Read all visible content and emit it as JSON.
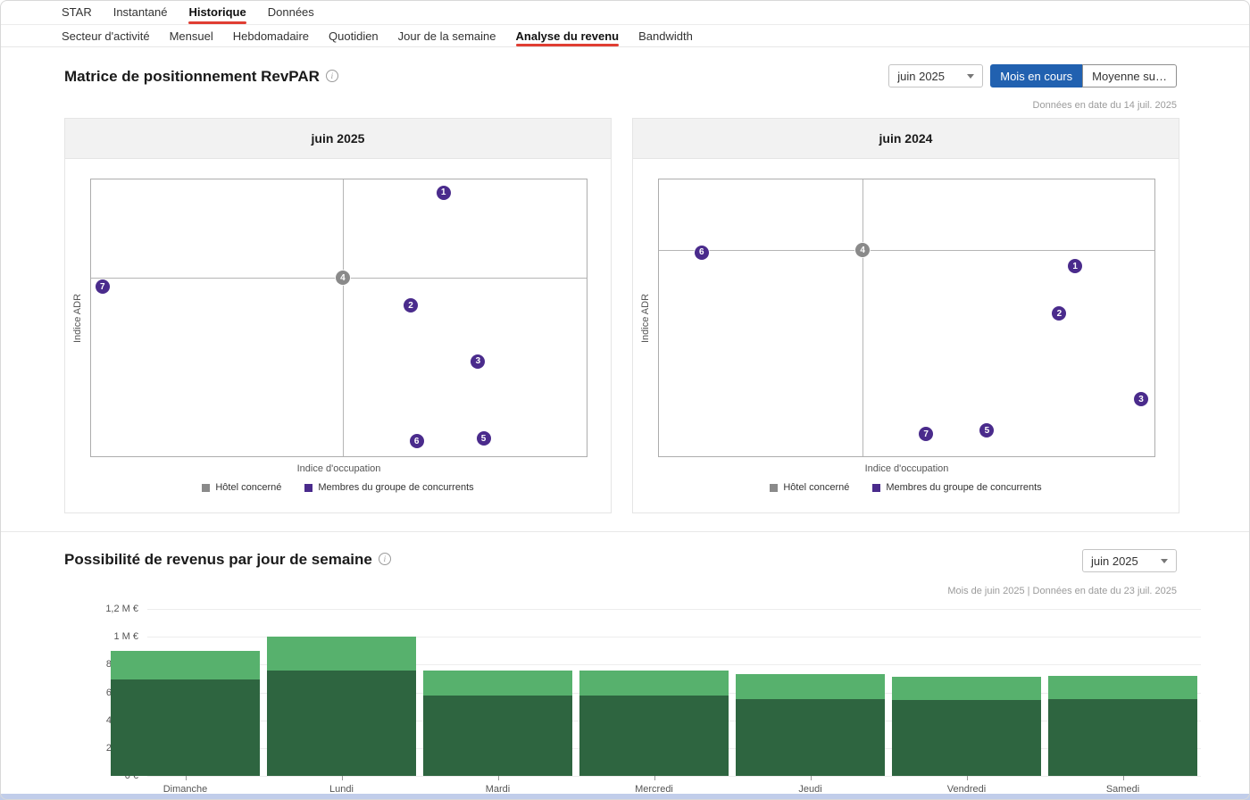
{
  "topnav": {
    "items": [
      {
        "label": "STAR",
        "active": false
      },
      {
        "label": "Instantané",
        "active": false
      },
      {
        "label": "Historique",
        "active": true
      },
      {
        "label": "Données",
        "active": false
      }
    ]
  },
  "subnav": {
    "items": [
      {
        "label": "Secteur d'activité",
        "active": false
      },
      {
        "label": "Mensuel",
        "active": false
      },
      {
        "label": "Hebdomadaire",
        "active": false
      },
      {
        "label": "Quotidien",
        "active": false
      },
      {
        "label": "Jour de la semaine",
        "active": false
      },
      {
        "label": "Analyse du revenu",
        "active": true
      },
      {
        "label": "Bandwidth",
        "active": false
      }
    ]
  },
  "matrix_section": {
    "title": "Matrice de positionnement RevPAR",
    "month_dropdown": "juin 2025",
    "toggle_active": "Mois en cours",
    "toggle_inactive": "Moyenne su…",
    "as_of": "Données en date du 14 juil. 2025",
    "x_axis_label": "Indice d'occupation",
    "y_axis_label": "Indice ADR",
    "legend": {
      "subject": "Hôtel concerné",
      "compset": "Membres du groupe de concurrents"
    }
  },
  "weekday_section": {
    "title": "Possibilité de revenus par jour de semaine",
    "month_dropdown": "juin 2025",
    "as_of": "Mois de juin 2025 | Données en date du 23 juil. 2025"
  },
  "colors": {
    "accent_red": "#e03e33",
    "active_blue": "#2161b0",
    "subject_gray": "#8a8a8a",
    "compset_purple": "#4a2b8c",
    "bar_dark_green": "#2e6540",
    "bar_light_green": "#57b16d"
  },
  "chart_data": [
    {
      "type": "scatter",
      "title": "juin 2025",
      "xlabel": "Indice d'occupation",
      "ylabel": "Indice ADR",
      "crosshair": {
        "x_pct": 50.8,
        "y_pct": 35.6
      },
      "points": [
        {
          "label": "1",
          "kind": "comp",
          "x_pct": 71.1,
          "y_pct": 4.8
        },
        {
          "label": "2",
          "kind": "comp",
          "x_pct": 64.5,
          "y_pct": 45.5
        },
        {
          "label": "3",
          "kind": "comp",
          "x_pct": 78.1,
          "y_pct": 65.7
        },
        {
          "label": "4",
          "kind": "subject",
          "x_pct": 50.8,
          "y_pct": 35.6
        },
        {
          "label": "5",
          "kind": "comp",
          "x_pct": 79.2,
          "y_pct": 93.6
        },
        {
          "label": "6",
          "kind": "comp",
          "x_pct": 65.7,
          "y_pct": 94.6
        },
        {
          "label": "7",
          "kind": "comp",
          "x_pct": 2.3,
          "y_pct": 38.8
        }
      ]
    },
    {
      "type": "scatter",
      "title": "juin 2024",
      "xlabel": "Indice d'occupation",
      "ylabel": "Indice ADR",
      "crosshair": {
        "x_pct": 41.1,
        "y_pct": 25.6
      },
      "points": [
        {
          "label": "1",
          "kind": "comp",
          "x_pct": 84.0,
          "y_pct": 31.4
        },
        {
          "label": "2",
          "kind": "comp",
          "x_pct": 80.8,
          "y_pct": 48.4
        },
        {
          "label": "3",
          "kind": "comp",
          "x_pct": 97.3,
          "y_pct": 79.5
        },
        {
          "label": "4",
          "kind": "subject",
          "x_pct": 41.1,
          "y_pct": 25.6
        },
        {
          "label": "5",
          "kind": "comp",
          "x_pct": 66.2,
          "y_pct": 90.7
        },
        {
          "label": "6",
          "kind": "comp",
          "x_pct": 8.6,
          "y_pct": 26.3
        },
        {
          "label": "7",
          "kind": "comp",
          "x_pct": 53.9,
          "y_pct": 92.0
        }
      ]
    },
    {
      "type": "stacked_bar",
      "categories": [
        "Dimanche",
        "Lundi",
        "Mardi",
        "Mercredi",
        "Jeudi",
        "Vendredi",
        "Samedi"
      ],
      "series": [
        {
          "name": "segment_bottom",
          "color_key": "bar_dark_green",
          "values_k_eur": [
            690,
            760,
            580,
            575,
            555,
            545,
            550
          ]
        },
        {
          "name": "segment_top",
          "color_key": "bar_light_green",
          "values_k_eur": [
            210,
            240,
            180,
            185,
            175,
            170,
            170
          ]
        }
      ],
      "totals_k_eur": [
        900,
        1000,
        760,
        760,
        730,
        715,
        720
      ],
      "y_ticks": [
        {
          "label": "1,2 M €",
          "value_k": 1200
        },
        {
          "label": "1 M €",
          "value_k": 1000
        },
        {
          "label": "800 k €",
          "value_k": 800
        },
        {
          "label": "600 k €",
          "value_k": 600
        },
        {
          "label": "400 k €",
          "value_k": 400
        },
        {
          "label": "200 k €",
          "value_k": 200
        },
        {
          "label": "0 €",
          "value_k": 0
        }
      ],
      "ylim_k": [
        0,
        1200
      ]
    }
  ]
}
